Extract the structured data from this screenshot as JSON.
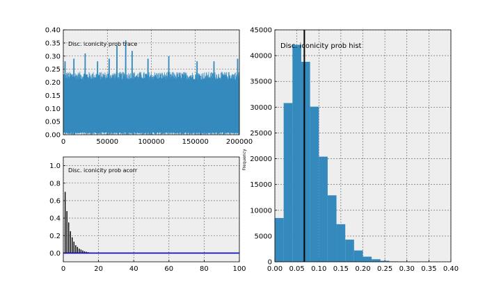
{
  "chart_data": [
    {
      "id": "trace",
      "type": "line",
      "title": "Disc. iconicity prob trace",
      "xlabel": "",
      "ylabel": "",
      "xlim": [
        0,
        200000
      ],
      "ylim": [
        0,
        0.4
      ],
      "xticks": [
        0,
        50000,
        100000,
        150000,
        200000
      ],
      "yticks": [
        0.0,
        0.05,
        0.1,
        0.15,
        0.2,
        0.25,
        0.3,
        0.35,
        0.4
      ],
      "xtick_labels": [
        "0",
        "50000",
        "100000",
        "150000",
        "200000"
      ],
      "ytick_labels": [
        "0.00",
        "0.05",
        "0.10",
        "0.15",
        "0.20",
        "0.25",
        "0.30",
        "0.35",
        "0.40"
      ],
      "series": [
        {
          "color": "#348ABD",
          "summary": {
            "typical_max": 0.22,
            "peak": 0.36,
            "min": 0.0,
            "peaks": [
              [
                2000,
                0.28
              ],
              [
                12000,
                0.29
              ],
              [
                25000,
                0.31
              ],
              [
                39000,
                0.28
              ],
              [
                52000,
                0.29
              ],
              [
                61000,
                0.34
              ],
              [
                71000,
                0.36
              ],
              [
                78000,
                0.32
              ],
              [
                96000,
                0.29
              ],
              [
                120000,
                0.3
              ],
              [
                152000,
                0.28
              ],
              [
                171000,
                0.28
              ],
              [
                198000,
                0.29
              ]
            ]
          }
        }
      ],
      "grid": true
    },
    {
      "id": "acorr",
      "type": "bar",
      "title": "Disc. iconicity prob acorr",
      "xlabel": "",
      "ylabel": "",
      "xlim": [
        0,
        100
      ],
      "ylim": [
        -0.1,
        1.1
      ],
      "xticks": [
        0,
        20,
        40,
        60,
        80,
        100
      ],
      "yticks": [
        0.0,
        0.2,
        0.4,
        0.6,
        0.8,
        1.0
      ],
      "xtick_labels": [
        "0",
        "20",
        "40",
        "60",
        "80",
        "100"
      ],
      "ytick_labels": [
        "0.0",
        "0.2",
        "0.4",
        "0.6",
        "0.8",
        "1.0"
      ],
      "lags": [
        1,
        2,
        3,
        4,
        5,
        6,
        7,
        8,
        9,
        10,
        11,
        12,
        13,
        14,
        15
      ],
      "values": [
        0.7,
        0.48,
        0.35,
        0.25,
        0.18,
        0.13,
        0.09,
        0.07,
        0.05,
        0.04,
        0.03,
        0.02,
        0.015,
        0.01,
        0.005
      ],
      "baseline_color": "#0000cc",
      "bar_color": "#000000",
      "grid": true
    },
    {
      "id": "hist",
      "type": "bar",
      "title": "Disc. iconicity prob hist",
      "xlabel": "",
      "ylabel": "Frequency",
      "xlim": [
        0,
        0.4
      ],
      "ylim": [
        0,
        45000
      ],
      "xticks": [
        0.0,
        0.05,
        0.1,
        0.15,
        0.2,
        0.25,
        0.3,
        0.35,
        0.4
      ],
      "yticks": [
        0,
        5000,
        10000,
        15000,
        20000,
        25000,
        30000,
        35000,
        40000,
        45000
      ],
      "xtick_labels": [
        "0.00",
        "0.05",
        "0.10",
        "0.15",
        "0.20",
        "0.25",
        "0.30",
        "0.35",
        "0.40"
      ],
      "ytick_labels": [
        "0",
        "5000",
        "10000",
        "15000",
        "20000",
        "25000",
        "30000",
        "35000",
        "40000",
        "45000"
      ],
      "bin_edges": [
        0.0,
        0.02,
        0.04,
        0.06,
        0.08,
        0.1,
        0.12,
        0.14,
        0.16,
        0.18,
        0.2,
        0.22,
        0.24,
        0.26,
        0.28,
        0.3,
        0.32,
        0.34,
        0.36
      ],
      "counts": [
        8500,
        30800,
        42100,
        38800,
        30100,
        20400,
        12900,
        7300,
        4300,
        2200,
        1000,
        500,
        200,
        80,
        30,
        10,
        5,
        2
      ],
      "mean_line": 0.067,
      "bar_color": "#348ABD",
      "grid": true
    }
  ]
}
